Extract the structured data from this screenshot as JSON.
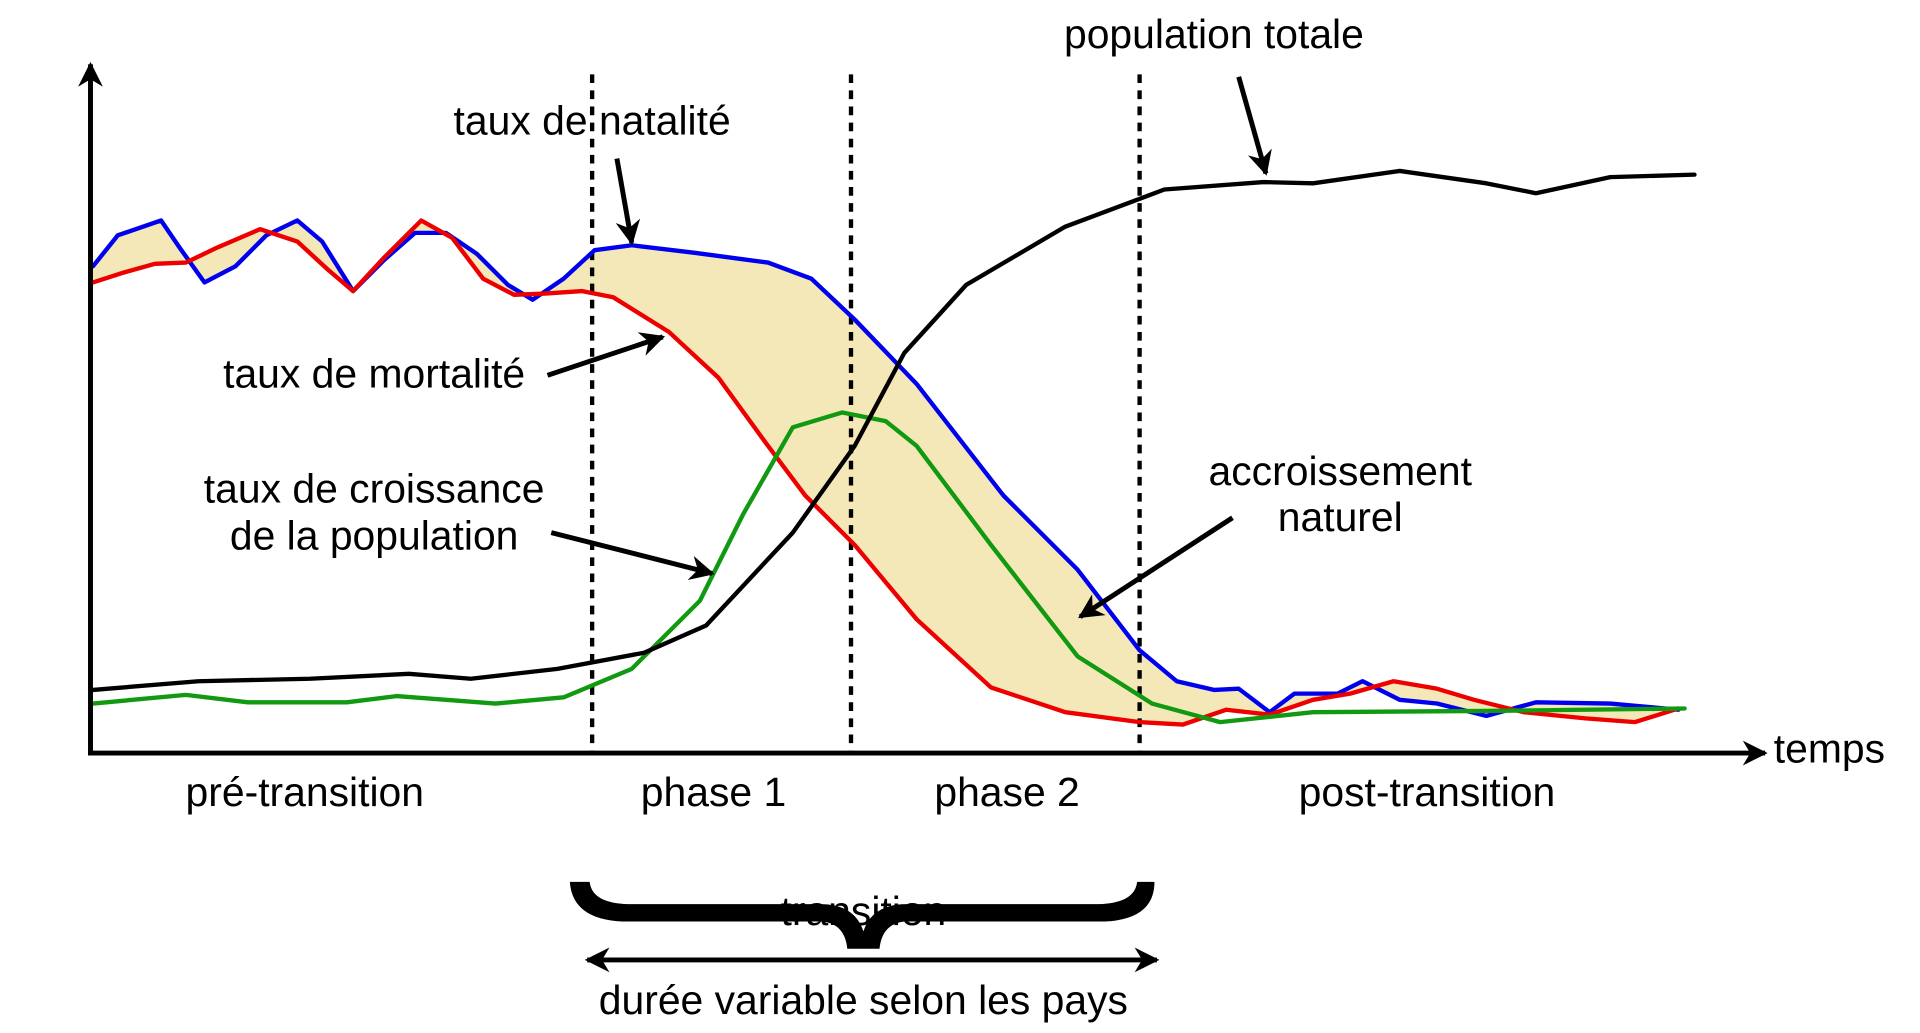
{
  "axes": {
    "x_label": "temps"
  },
  "labels": {
    "total_population": "population totale",
    "birth_rate": "taux de natalité",
    "death_rate": "taux de mortalité",
    "growth_rate": [
      "taux de croissance",
      "de la population"
    ],
    "natural_increase": [
      "accroissement",
      "naturel"
    ]
  },
  "phases": [
    "pré-transition",
    "phase 1",
    "phase 2",
    "post-transition"
  ],
  "transition": {
    "label": "transition",
    "duration": "durée variable selon les pays"
  }
}
